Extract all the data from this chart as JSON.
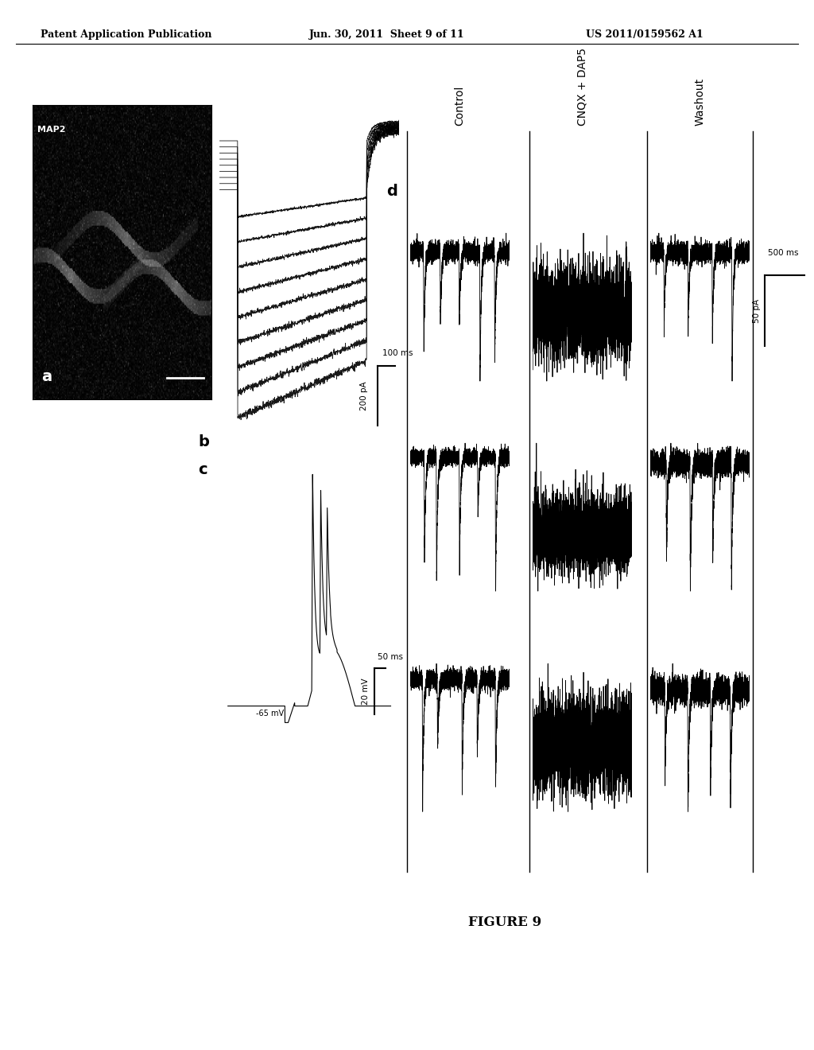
{
  "header_left": "Patent Application Publication",
  "header_center": "Jun. 30, 2011  Sheet 9 of 11",
  "header_right": "US 2011/0159562 A1",
  "figure_label": "FIGURE 9",
  "panel_a_label": "a",
  "panel_b_label": "b",
  "panel_c_label": "c",
  "panel_d_label": "d",
  "panel_b_scale_y": "200 pA",
  "panel_b_scale_x": "100 ms",
  "panel_c_scale_y": "20 mV",
  "panel_c_scale_x": "50 ms",
  "panel_c_baseline": "-65 mV",
  "col_control": "Control",
  "col_cnqx": "CNQX + DAP5",
  "col_washout": "Washout",
  "col_washout_scale_y": "50 pA",
  "col_washout_scale_x": "500 ms",
  "bg_color": "#ffffff",
  "line_color": "#000000",
  "image_bg": "#1a1a1a"
}
